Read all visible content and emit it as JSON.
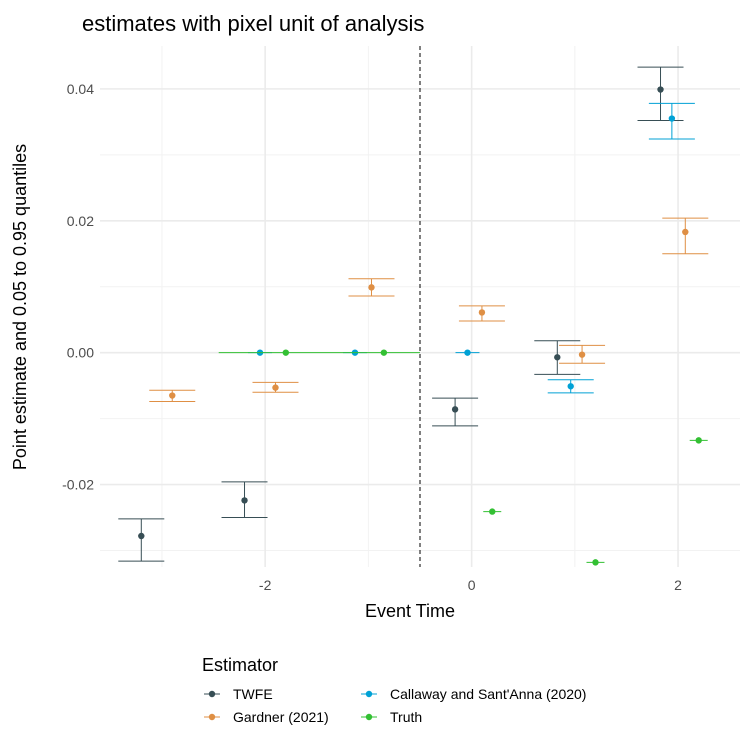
{
  "chart_data": {
    "type": "scatter",
    "title": "estimates with pixel unit of analysis",
    "xlabel": "Event Time",
    "ylabel": "Point estimate and 0.05 to 0.95 quantiles",
    "xlim": [
      -3.6,
      2.6
    ],
    "ylim": [
      -0.0325,
      0.0465
    ],
    "x_ticks": [
      -2,
      0,
      2
    ],
    "x_tick_labels": [
      "-2",
      "0",
      "2"
    ],
    "y_ticks": [
      -0.02,
      0.0,
      0.02,
      0.04
    ],
    "y_tick_labels": [
      "-0.02",
      "0.00",
      "0.02",
      "0.04"
    ],
    "grid": true,
    "event_line_x": -0.5,
    "legend": {
      "title": "Estimator",
      "position": "bottom"
    },
    "series": [
      {
        "name": "TWFE",
        "color": "#374E55",
        "points": [
          {
            "x": -3.2,
            "y": -0.0278,
            "low": -0.0316,
            "high": -0.0252
          },
          {
            "x": -2.2,
            "y": -0.0224,
            "low": -0.025,
            "high": -0.0196
          },
          {
            "x": -0.16,
            "y": -0.0086,
            "low": -0.0111,
            "high": -0.0069
          },
          {
            "x": 0.83,
            "y": -0.0007,
            "low": -0.0033,
            "high": 0.0018
          },
          {
            "x": 1.83,
            "y": 0.0399,
            "low": 0.0352,
            "high": 0.0433
          }
        ]
      },
      {
        "name": "Gardner (2021)",
        "color": "#DF8F44",
        "points": [
          {
            "x": -2.9,
            "y": -0.0065,
            "low": -0.0074,
            "high": -0.0057
          },
          {
            "x": -1.9,
            "y": -0.0053,
            "low": -0.006,
            "high": -0.0045
          },
          {
            "x": -0.97,
            "y": 0.0099,
            "low": 0.0086,
            "high": 0.0112
          },
          {
            "x": 0.1,
            "y": 0.0061,
            "low": 0.0048,
            "high": 0.0071
          },
          {
            "x": 1.07,
            "y": -0.0003,
            "low": -0.0016,
            "high": 0.0011
          },
          {
            "x": 2.07,
            "y": 0.0183,
            "low": 0.015,
            "high": 0.0204
          }
        ]
      },
      {
        "name": "Callaway and Sant'Anna (2020)",
        "color": "#00A1D5",
        "points": [
          {
            "x": -2.05,
            "y": 0.0,
            "low": 0.0,
            "high": 0.0
          },
          {
            "x": -1.13,
            "y": 0.0,
            "low": 0.0,
            "high": 0.0
          },
          {
            "x": -0.04,
            "y": 0.0,
            "low": 0.0,
            "high": 0.0
          },
          {
            "x": 0.96,
            "y": -0.0051,
            "low": -0.0061,
            "high": -0.0041
          },
          {
            "x": 1.94,
            "y": 0.0355,
            "low": 0.0324,
            "high": 0.0378
          }
        ]
      },
      {
        "name": "Truth",
        "color": "#33C033",
        "points": [
          {
            "x": -1.8,
            "y": 0.0
          },
          {
            "x": -0.85,
            "y": 0.0
          },
          {
            "x": 0.2,
            "y": -0.0241
          },
          {
            "x": 1.2,
            "y": -0.0318
          },
          {
            "x": 2.2,
            "y": -0.0133
          }
        ],
        "line_segments": [
          {
            "x1": -2.45,
            "x2": -0.5,
            "y": 0.0
          }
        ]
      }
    ]
  }
}
